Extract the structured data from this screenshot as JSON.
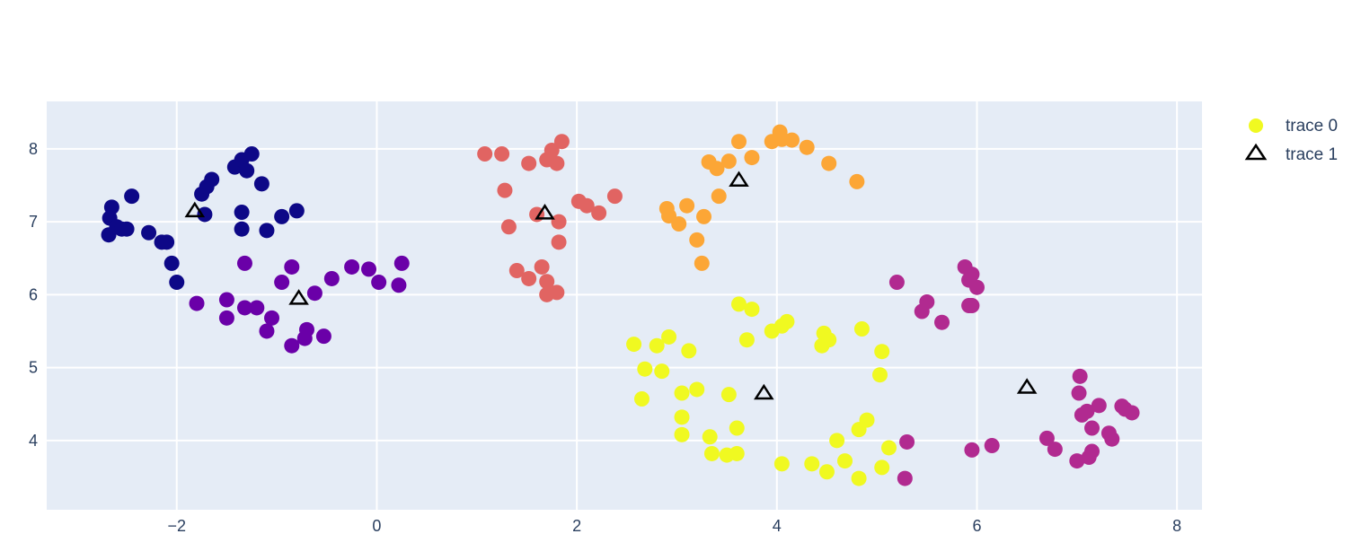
{
  "chart_data": {
    "type": "scatter",
    "title": "",
    "xlabel": "",
    "ylabel": "",
    "xlim": [
      -3.3,
      8.25
    ],
    "ylim": [
      3.05,
      8.65
    ],
    "x_ticks": [
      -2,
      0,
      2,
      4,
      6,
      8
    ],
    "y_ticks": [
      4,
      5,
      6,
      7,
      8
    ],
    "x_tick_labels": [
      "−2",
      "0",
      "2",
      "4",
      "6",
      "8"
    ],
    "y_tick_labels": [
      "4",
      "5",
      "6",
      "7",
      "8"
    ],
    "grid": true,
    "plot_background": "#e5ecf6",
    "grid_color": "#ffffff",
    "legend_position": "top-right",
    "series": [
      {
        "name": "trace 0",
        "marker": "circle",
        "legend_color": "#f0f921",
        "groups": [
          {
            "color": "#0d0887",
            "points": [
              [
                -2.65,
                7.2
              ],
              [
                -2.67,
                7.05
              ],
              [
                -2.68,
                6.82
              ],
              [
                -2.6,
                6.93
              ],
              [
                -2.55,
                6.9
              ],
              [
                -2.5,
                6.9
              ],
              [
                -2.45,
                7.35
              ],
              [
                -2.28,
                6.85
              ],
              [
                -2.15,
                6.72
              ],
              [
                -2.1,
                6.72
              ],
              [
                -2.05,
                6.43
              ],
              [
                -2.0,
                6.17
              ],
              [
                -1.72,
                7.1
              ],
              [
                -1.75,
                7.38
              ],
              [
                -1.7,
                7.48
              ],
              [
                -1.65,
                7.58
              ],
              [
                -1.42,
                7.75
              ],
              [
                -1.35,
                7.85
              ],
              [
                -1.3,
                7.7
              ],
              [
                -1.25,
                7.93
              ],
              [
                -1.15,
                7.52
              ],
              [
                -1.35,
                7.13
              ],
              [
                -1.35,
                6.9
              ],
              [
                -1.1,
                6.88
              ],
              [
                -0.95,
                7.07
              ],
              [
                -0.8,
                7.15
              ]
            ]
          },
          {
            "color": "#6a00a8",
            "points": [
              [
                -1.8,
                5.88
              ],
              [
                -1.5,
                5.93
              ],
              [
                -1.5,
                5.68
              ],
              [
                -1.32,
                5.82
              ],
              [
                -1.2,
                5.82
              ],
              [
                -1.32,
                6.43
              ],
              [
                -1.05,
                5.68
              ],
              [
                -1.1,
                5.5
              ],
              [
                -0.95,
                6.17
              ],
              [
                -0.85,
                6.38
              ],
              [
                -0.85,
                5.3
              ],
              [
                -0.72,
                5.4
              ],
              [
                -0.7,
                5.52
              ],
              [
                -0.62,
                6.02
              ],
              [
                -0.53,
                5.43
              ],
              [
                -0.45,
                6.22
              ],
              [
                -0.25,
                6.38
              ],
              [
                -0.08,
                6.35
              ],
              [
                0.02,
                6.17
              ],
              [
                0.22,
                6.13
              ],
              [
                0.25,
                6.43
              ]
            ]
          },
          {
            "color": "#e16462",
            "points": [
              [
                1.08,
                7.93
              ],
              [
                1.25,
                7.93
              ],
              [
                1.28,
                7.43
              ],
              [
                1.32,
                6.93
              ],
              [
                1.4,
                6.33
              ],
              [
                1.52,
                6.22
              ],
              [
                1.52,
                7.8
              ],
              [
                1.6,
                7.1
              ],
              [
                1.65,
                6.38
              ],
              [
                1.7,
                6.0
              ],
              [
                1.7,
                6.18
              ],
              [
                1.7,
                7.85
              ],
              [
                1.75,
                7.98
              ],
              [
                1.8,
                6.03
              ],
              [
                1.8,
                7.8
              ],
              [
                1.82,
                7.0
              ],
              [
                1.82,
                6.72
              ],
              [
                1.85,
                8.1
              ],
              [
                2.02,
                7.28
              ],
              [
                2.1,
                7.22
              ],
              [
                2.22,
                7.12
              ],
              [
                2.38,
                7.35
              ]
            ]
          },
          {
            "color": "#fca636",
            "points": [
              [
                2.9,
                7.18
              ],
              [
                2.92,
                7.08
              ],
              [
                3.02,
                6.97
              ],
              [
                3.1,
                7.22
              ],
              [
                3.2,
                6.75
              ],
              [
                3.25,
                6.43
              ],
              [
                3.27,
                7.07
              ],
              [
                3.32,
                7.82
              ],
              [
                3.4,
                7.73
              ],
              [
                3.42,
                7.35
              ],
              [
                3.52,
                7.83
              ],
              [
                3.62,
                8.1
              ],
              [
                3.75,
                7.88
              ],
              [
                3.95,
                8.1
              ],
              [
                4.03,
                8.23
              ],
              [
                4.05,
                8.13
              ],
              [
                4.15,
                8.12
              ],
              [
                4.3,
                8.02
              ],
              [
                4.52,
                7.8
              ],
              [
                4.8,
                7.55
              ]
            ]
          },
          {
            "color": "#f0f921",
            "points": [
              [
                2.57,
                5.32
              ],
              [
                2.65,
                4.57
              ],
              [
                2.68,
                4.98
              ],
              [
                2.8,
                5.3
              ],
              [
                2.85,
                4.95
              ],
              [
                2.92,
                5.42
              ],
              [
                3.05,
                4.65
              ],
              [
                3.05,
                4.32
              ],
              [
                3.05,
                4.08
              ],
              [
                3.12,
                5.23
              ],
              [
                3.2,
                4.7
              ],
              [
                3.33,
                4.05
              ],
              [
                3.35,
                3.82
              ],
              [
                3.5,
                3.8
              ],
              [
                3.52,
                4.63
              ],
              [
                3.6,
                3.82
              ],
              [
                3.6,
                4.17
              ],
              [
                3.62,
                5.87
              ],
              [
                3.7,
                5.38
              ],
              [
                3.75,
                5.8
              ],
              [
                3.95,
                5.5
              ],
              [
                4.05,
                3.68
              ],
              [
                4.05,
                5.57
              ],
              [
                4.1,
                5.63
              ],
              [
                4.35,
                3.68
              ],
              [
                4.45,
                5.3
              ],
              [
                4.47,
                5.47
              ],
              [
                4.5,
                3.57
              ],
              [
                4.52,
                5.38
              ],
              [
                4.6,
                4.0
              ],
              [
                4.68,
                3.72
              ],
              [
                4.82,
                4.15
              ],
              [
                4.82,
                3.48
              ],
              [
                4.85,
                5.53
              ],
              [
                4.9,
                4.28
              ],
              [
                5.03,
                4.9
              ],
              [
                5.05,
                5.22
              ],
              [
                5.05,
                3.63
              ],
              [
                5.12,
                3.9
              ]
            ]
          },
          {
            "color": "#b12a90",
            "points": [
              [
                5.2,
                6.17
              ],
              [
                5.28,
                3.48
              ],
              [
                5.3,
                3.98
              ],
              [
                5.45,
                5.77
              ],
              [
                5.5,
                5.9
              ],
              [
                5.65,
                5.62
              ],
              [
                5.88,
                6.38
              ],
              [
                5.92,
                6.2
              ],
              [
                5.92,
                5.85
              ],
              [
                5.95,
                5.85
              ],
              [
                5.95,
                3.87
              ],
              [
                5.95,
                6.28
              ],
              [
                6.0,
                6.1
              ],
              [
                6.15,
                3.93
              ],
              [
                6.7,
                4.03
              ],
              [
                6.78,
                3.88
              ],
              [
                7.0,
                3.72
              ],
              [
                7.02,
                4.65
              ],
              [
                7.03,
                4.88
              ],
              [
                7.05,
                4.35
              ],
              [
                7.1,
                4.4
              ],
              [
                7.12,
                3.77
              ],
              [
                7.15,
                3.85
              ],
              [
                7.15,
                4.17
              ],
              [
                7.22,
                4.48
              ],
              [
                7.32,
                4.1
              ],
              [
                7.35,
                4.02
              ],
              [
                7.45,
                4.47
              ],
              [
                7.48,
                4.43
              ],
              [
                7.55,
                4.38
              ]
            ]
          }
        ]
      },
      {
        "name": "trace 1",
        "marker": "triangle-up-open",
        "color": "#000000",
        "points": [
          [
            -1.82,
            7.15
          ],
          [
            -0.78,
            5.95
          ],
          [
            1.68,
            7.12
          ],
          [
            3.62,
            7.57
          ],
          [
            3.87,
            4.65
          ],
          [
            6.5,
            4.73
          ]
        ]
      }
    ]
  },
  "legend": {
    "items": [
      {
        "label": "trace 0",
        "symbol": "circle",
        "color": "#f0f921"
      },
      {
        "label": "trace 1",
        "symbol": "triangle-up-open",
        "color": "#000000"
      }
    ]
  }
}
